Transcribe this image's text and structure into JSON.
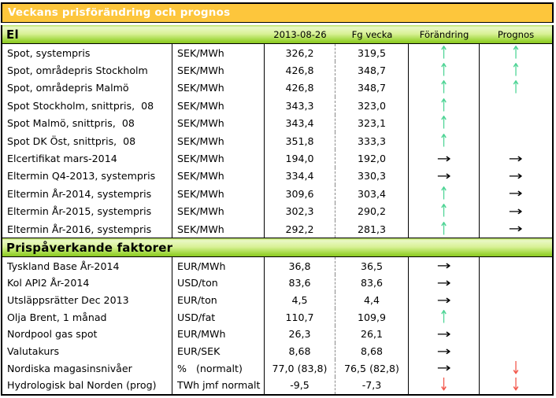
{
  "title": "Veckans prisförändring och prognos",
  "columns": {
    "current": "2013-08-26",
    "previous": "Fg vecka",
    "change": "Förändring",
    "forecast": "Prognos"
  },
  "colors": {
    "title_bg": "#fdc63c",
    "title_text": "#ffffff",
    "section_green": "#8ac71f",
    "border": "#000000",
    "dotted_divider": "#8a8a8a"
  },
  "arrows": {
    "up": {
      "glyph": "↑",
      "color": "#4ed495"
    },
    "right": {
      "glyph": "→",
      "color": "#000000"
    },
    "down": {
      "glyph": "↓",
      "color": "#f2564a"
    }
  },
  "sections": [
    {
      "name": "El",
      "rows": [
        {
          "label": "Spot, systempris",
          "unit": "SEK/MWh",
          "current": "326,2",
          "previous": "319,5",
          "change": "up",
          "forecast": "up"
        },
        {
          "label": "Spot, områdepris Stockholm",
          "unit": "SEK/MWh",
          "current": "426,8",
          "previous": "348,7",
          "change": "up",
          "forecast": "up"
        },
        {
          "label": "Spot, områdepris Malmö",
          "unit": "SEK/MWh",
          "current": "426,8",
          "previous": "348,7",
          "change": "up",
          "forecast": "up"
        },
        {
          "label": "Spot Stockholm, snittpris,  08",
          "unit": "SEK/MWh",
          "current": "343,3",
          "previous": "323,0",
          "change": "up",
          "forecast": ""
        },
        {
          "label": "Spot Malmö, snittpris,  08",
          "unit": "SEK/MWh",
          "current": "343,4",
          "previous": "323,1",
          "change": "up",
          "forecast": ""
        },
        {
          "label": "Spot DK Öst, snittpris,  08",
          "unit": "SEK/MWh",
          "current": "351,8",
          "previous": "333,3",
          "change": "up",
          "forecast": ""
        },
        {
          "label": "Elcertifikat mars-2014",
          "unit": "SEK/MWh",
          "current": "194,0",
          "previous": "192,0",
          "change": "right",
          "forecast": "right"
        },
        {
          "label": "Eltermin Q4-2013, systempris",
          "unit": "SEK/MWh",
          "current": "334,4",
          "previous": "330,3",
          "change": "right",
          "forecast": "right"
        },
        {
          "label": "Eltermin År-2014, systempris",
          "unit": "SEK/MWh",
          "current": "309,6",
          "previous": "303,4",
          "change": "up",
          "forecast": "right"
        },
        {
          "label": "Eltermin År-2015, systempris",
          "unit": "SEK/MWh",
          "current": "302,3",
          "previous": "290,2",
          "change": "up",
          "forecast": "right"
        },
        {
          "label": "Eltermin År-2016, systempris",
          "unit": "SEK/MWh",
          "current": "292,2",
          "previous": "281,3",
          "change": "up",
          "forecast": "right"
        }
      ]
    },
    {
      "name": "Prispåverkande faktorer",
      "rows": [
        {
          "label": "Tyskland Base År-2014",
          "unit": "EUR/MWh",
          "current": "36,8",
          "previous": "36,5",
          "change": "right",
          "forecast": ""
        },
        {
          "label": "Kol API2 År-2014",
          "unit": "USD/ton",
          "current": "83,6",
          "previous": "83,6",
          "change": "right",
          "forecast": ""
        },
        {
          "label": "Utsläppsrätter Dec 2013",
          "unit": "EUR/ton",
          "current": "4,5",
          "previous": "4,4",
          "change": "right",
          "forecast": ""
        },
        {
          "label": "Olja Brent, 1 månad",
          "unit": "USD/fat",
          "current": "110,7",
          "previous": "109,9",
          "change": "up",
          "forecast": ""
        },
        {
          "label": "Nordpool gas spot",
          "unit": "EUR/MWh",
          "current": "26,3",
          "previous": "26,1",
          "change": "right",
          "forecast": ""
        },
        {
          "label": "Valutakurs",
          "unit": "EUR/SEK",
          "current": "8,68",
          "previous": "8,68",
          "change": "right",
          "forecast": ""
        },
        {
          "label": "Nordiska magasinsnivåer",
          "unit": "%   (normalt)",
          "current": "77,0 (83,8)",
          "previous": "76,5 (82,8)",
          "change": "right",
          "forecast": "down"
        },
        {
          "label": "Hydrologisk bal Norden (prog)",
          "unit": "TWh jmf normalt",
          "current": "-9,5",
          "previous": "-7,3",
          "change": "down",
          "forecast": "down"
        }
      ]
    }
  ]
}
